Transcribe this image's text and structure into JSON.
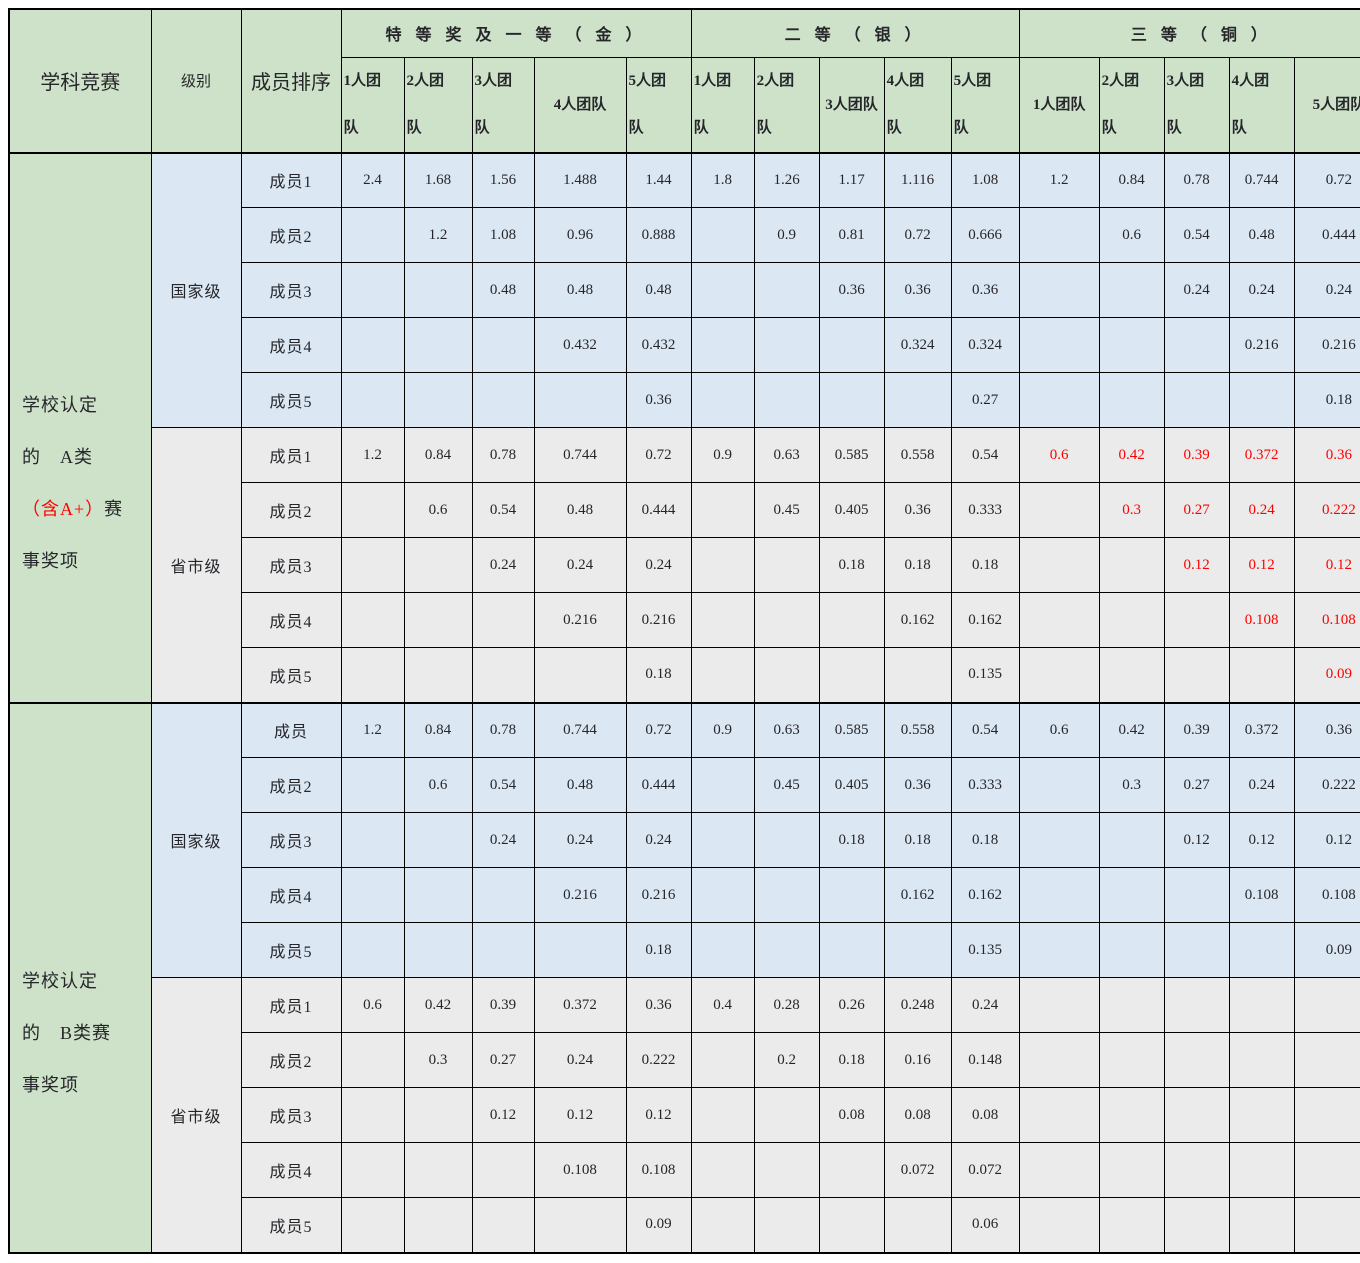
{
  "colors": {
    "header_green": "#cde2c9",
    "row_blue": "#dbe8f4",
    "row_gray": "#ebebeb",
    "highlight_red": "#fe0000",
    "border": "#000000",
    "page_background": "#ffffff"
  },
  "table": {
    "header": {
      "col1": "学科竞赛",
      "col2": "级别",
      "col3": "成员排序",
      "groups": [
        {
          "label": "特 等 奖 及 一 等 （ 金 ）",
          "subcols": [
            "1人团\n队",
            "2人团\n队",
            "3人团\n队",
            "4人团队",
            "5人团\n队"
          ]
        },
        {
          "label": "二 等 （ 银 ）",
          "subcols": [
            "1人团\n队",
            "2人团\n队",
            "3人团队",
            "4人团\n队",
            "5人团\n队"
          ]
        },
        {
          "label": "三 等 （ 铜 ）",
          "subcols": [
            "1人团队",
            "2人团\n队",
            "3人团\n队",
            "4人团\n队",
            "5人团队"
          ]
        }
      ]
    },
    "blocks": [
      {
        "name": "a-class",
        "label_lines": [
          [
            {
              "text": "学校认定",
              "color": "default"
            }
          ],
          [
            {
              "text": "的　A类",
              "color": "default"
            }
          ],
          [
            {
              "text": "（含A+）",
              "color": "red"
            },
            {
              "text": "赛",
              "color": "default"
            }
          ],
          [
            {
              "text": "事奖项",
              "color": "default"
            }
          ]
        ],
        "levels": [
          {
            "name": "国家级",
            "theme": "blue",
            "bronze_red": false,
            "rows": [
              {
                "member": "成员1",
                "values": [
                  "2.4",
                  "1.68",
                  "1.56",
                  "1.488",
                  "1.44",
                  "1.8",
                  "1.26",
                  "1.17",
                  "1.116",
                  "1.08",
                  "1.2",
                  "0.84",
                  "0.78",
                  "0.744",
                  "0.72"
                ]
              },
              {
                "member": "成员2",
                "values": [
                  "",
                  "1.2",
                  "1.08",
                  "0.96",
                  "0.888",
                  "",
                  "0.9",
                  "0.81",
                  "0.72",
                  "0.666",
                  "",
                  "0.6",
                  "0.54",
                  "0.48",
                  "0.444"
                ]
              },
              {
                "member": "成员3",
                "values": [
                  "",
                  "",
                  "0.48",
                  "0.48",
                  "0.48",
                  "",
                  "",
                  "0.36",
                  "0.36",
                  "0.36",
                  "",
                  "",
                  "0.24",
                  "0.24",
                  "0.24"
                ]
              },
              {
                "member": "成员4",
                "values": [
                  "",
                  "",
                  "",
                  "0.432",
                  "0.432",
                  "",
                  "",
                  "",
                  "0.324",
                  "0.324",
                  "",
                  "",
                  "",
                  "0.216",
                  "0.216"
                ]
              },
              {
                "member": "成员5",
                "values": [
                  "",
                  "",
                  "",
                  "",
                  "0.36",
                  "",
                  "",
                  "",
                  "",
                  "0.27",
                  "",
                  "",
                  "",
                  "",
                  "0.18"
                ]
              }
            ]
          },
          {
            "name": "省市级",
            "theme": "gray",
            "bronze_red": true,
            "rows": [
              {
                "member": "成员1",
                "values": [
                  "1.2",
                  "0.84",
                  "0.78",
                  "0.744",
                  "0.72",
                  "0.9",
                  "0.63",
                  "0.585",
                  "0.558",
                  "0.54",
                  "0.6",
                  "0.42",
                  "0.39",
                  "0.372",
                  "0.36"
                ]
              },
              {
                "member": "成员2",
                "values": [
                  "",
                  "0.6",
                  "0.54",
                  "0.48",
                  "0.444",
                  "",
                  "0.45",
                  "0.405",
                  "0.36",
                  "0.333",
                  "",
                  "0.3",
                  "0.27",
                  "0.24",
                  "0.222"
                ]
              },
              {
                "member": "成员3",
                "values": [
                  "",
                  "",
                  "0.24",
                  "0.24",
                  "0.24",
                  "",
                  "",
                  "0.18",
                  "0.18",
                  "0.18",
                  "",
                  "",
                  "0.12",
                  "0.12",
                  "0.12"
                ]
              },
              {
                "member": "成员4",
                "values": [
                  "",
                  "",
                  "",
                  "0.216",
                  "0.216",
                  "",
                  "",
                  "",
                  "0.162",
                  "0.162",
                  "",
                  "",
                  "",
                  "0.108",
                  "0.108"
                ]
              },
              {
                "member": "成员5",
                "values": [
                  "",
                  "",
                  "",
                  "",
                  "0.18",
                  "",
                  "",
                  "",
                  "",
                  "0.135",
                  "",
                  "",
                  "",
                  "",
                  "0.09"
                ]
              }
            ]
          }
        ]
      },
      {
        "name": "b-class",
        "label_lines": [
          [
            {
              "text": "学校认定",
              "color": "default"
            }
          ],
          [
            {
              "text": "的　B类赛",
              "color": "default"
            }
          ],
          [
            {
              "text": "事奖项",
              "color": "default"
            }
          ]
        ],
        "levels": [
          {
            "name": "国家级",
            "theme": "blue",
            "bronze_red": false,
            "rows": [
              {
                "member": "成员",
                "values": [
                  "1.2",
                  "0.84",
                  "0.78",
                  "0.744",
                  "0.72",
                  "0.9",
                  "0.63",
                  "0.585",
                  "0.558",
                  "0.54",
                  "0.6",
                  "0.42",
                  "0.39",
                  "0.372",
                  "0.36"
                ]
              },
              {
                "member": "成员2",
                "values": [
                  "",
                  "0.6",
                  "0.54",
                  "0.48",
                  "0.444",
                  "",
                  "0.45",
                  "0.405",
                  "0.36",
                  "0.333",
                  "",
                  "0.3",
                  "0.27",
                  "0.24",
                  "0.222"
                ]
              },
              {
                "member": "成员3",
                "values": [
                  "",
                  "",
                  "0.24",
                  "0.24",
                  "0.24",
                  "",
                  "",
                  "0.18",
                  "0.18",
                  "0.18",
                  "",
                  "",
                  "0.12",
                  "0.12",
                  "0.12"
                ]
              },
              {
                "member": "成员4",
                "values": [
                  "",
                  "",
                  "",
                  "0.216",
                  "0.216",
                  "",
                  "",
                  "",
                  "0.162",
                  "0.162",
                  "",
                  "",
                  "",
                  "0.108",
                  "0.108"
                ]
              },
              {
                "member": "成员5",
                "values": [
                  "",
                  "",
                  "",
                  "",
                  "0.18",
                  "",
                  "",
                  "",
                  "",
                  "0.135",
                  "",
                  "",
                  "",
                  "",
                  "0.09"
                ]
              }
            ]
          },
          {
            "name": "省市级",
            "theme": "gray",
            "bronze_red": false,
            "rows": [
              {
                "member": "成员1",
                "values": [
                  "0.6",
                  "0.42",
                  "0.39",
                  "0.372",
                  "0.36",
                  "0.4",
                  "0.28",
                  "0.26",
                  "0.248",
                  "0.24",
                  "",
                  "",
                  "",
                  "",
                  ""
                ]
              },
              {
                "member": "成员2",
                "values": [
                  "",
                  "0.3",
                  "0.27",
                  "0.24",
                  "0.222",
                  "",
                  "0.2",
                  "0.18",
                  "0.16",
                  "0.148",
                  "",
                  "",
                  "",
                  "",
                  ""
                ]
              },
              {
                "member": "成员3",
                "values": [
                  "",
                  "",
                  "0.12",
                  "0.12",
                  "0.12",
                  "",
                  "",
                  "0.08",
                  "0.08",
                  "0.08",
                  "",
                  "",
                  "",
                  "",
                  ""
                ]
              },
              {
                "member": "成员4",
                "values": [
                  "",
                  "",
                  "",
                  "0.108",
                  "0.108",
                  "",
                  "",
                  "",
                  "0.072",
                  "0.072",
                  "",
                  "",
                  "",
                  "",
                  ""
                ]
              },
              {
                "member": "成员5",
                "values": [
                  "",
                  "",
                  "",
                  "",
                  "0.09",
                  "",
                  "",
                  "",
                  "",
                  "0.06",
                  "",
                  "",
                  "",
                  "",
                  ""
                ]
              }
            ]
          }
        ]
      }
    ]
  }
}
